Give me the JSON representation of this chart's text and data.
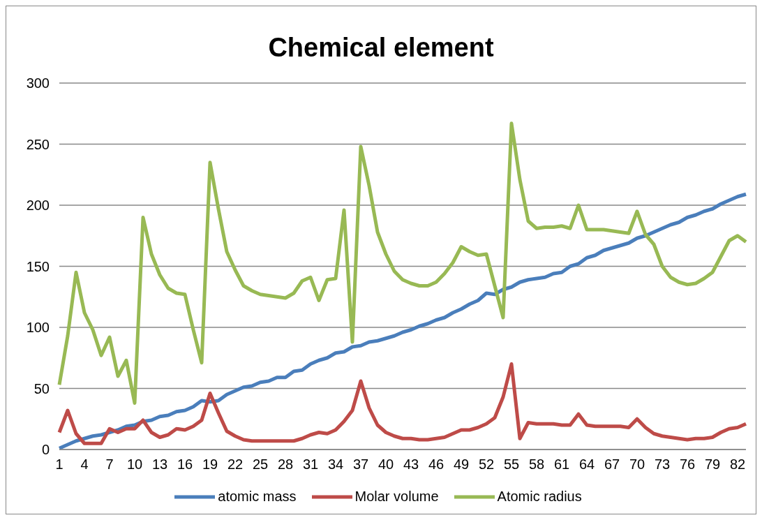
{
  "chart_data": {
    "type": "line",
    "title": "Chemical element",
    "categories": [
      "1",
      null,
      null,
      "4",
      null,
      null,
      "7",
      null,
      null,
      "10",
      null,
      null,
      "13",
      null,
      null,
      "16",
      null,
      null,
      "19",
      null,
      null,
      "22",
      null,
      null,
      "25",
      null,
      null,
      "28",
      null,
      null,
      "31",
      null,
      null,
      "34",
      null,
      null,
      "37",
      null,
      null,
      "40",
      null,
      null,
      "43",
      null,
      null,
      "46",
      null,
      null,
      "49",
      null,
      null,
      "52",
      null,
      null,
      "55",
      null,
      null,
      "58",
      null,
      null,
      "61",
      null,
      null,
      "64",
      null,
      null,
      "67",
      null,
      null,
      "70",
      null,
      null,
      "73",
      null,
      null,
      "76",
      null,
      null,
      "79",
      null,
      null,
      "82",
      null
    ],
    "series": [
      {
        "name": "atomic mass",
        "color": "#4a7ebb",
        "values": [
          1,
          4,
          7,
          9,
          11,
          12,
          14,
          16,
          19,
          20,
          23,
          24,
          27,
          28,
          31,
          32,
          35,
          40,
          39,
          40,
          45,
          48,
          51,
          52,
          55,
          56,
          59,
          59,
          64,
          65,
          70,
          73,
          75,
          79,
          80,
          84,
          85,
          88,
          89,
          91,
          93,
          96,
          98,
          101,
          103,
          106,
          108,
          112,
          115,
          119,
          122,
          128,
          127,
          131,
          133,
          137,
          139,
          140,
          141,
          144,
          145,
          150,
          152,
          157,
          159,
          163,
          165,
          167,
          169,
          173,
          175,
          178,
          181,
          184,
          186,
          190,
          192,
          195,
          197,
          201,
          204,
          207,
          209
        ]
      },
      {
        "name": "Molar volume",
        "color": "#be4b48",
        "values": [
          14,
          32,
          13,
          5,
          5,
          5,
          17,
          14,
          17,
          17,
          24,
          14,
          10,
          12,
          17,
          16,
          19,
          24,
          46,
          30,
          15,
          11,
          8,
          7,
          7,
          7,
          7,
          7,
          7,
          9,
          12,
          14,
          13,
          16,
          23,
          32,
          56,
          34,
          20,
          14,
          11,
          9,
          9,
          8,
          8,
          9,
          10,
          13,
          16,
          16,
          18,
          21,
          26,
          43,
          70,
          9,
          22,
          21,
          21,
          21,
          20,
          20,
          29,
          20,
          19,
          19,
          19,
          19,
          18,
          25,
          18,
          13,
          11,
          10,
          9,
          8,
          9,
          9,
          10,
          14,
          17,
          18,
          21
        ]
      },
      {
        "name": "Atomic radius",
        "color": "#98b954",
        "values": [
          53,
          93,
          145,
          112,
          98,
          77,
          92,
          60,
          73,
          38,
          190,
          160,
          143,
          132,
          128,
          127,
          98,
          71,
          235,
          197,
          162,
          147,
          134,
          130,
          127,
          126,
          125,
          124,
          128,
          138,
          141,
          122,
          139,
          140,
          196,
          88,
          248,
          216,
          178,
          160,
          146,
          139,
          136,
          134,
          134,
          137,
          144,
          153,
          166,
          162,
          159,
          160,
          134,
          108,
          267,
          221,
          187,
          181,
          182,
          182,
          183,
          181,
          200,
          180,
          180,
          180,
          179,
          178,
          177,
          195,
          176,
          168,
          150,
          141,
          137,
          135,
          136,
          140,
          145,
          158,
          171,
          175,
          170
        ]
      }
    ],
    "ylim": [
      0,
      300
    ],
    "yticks": [
      0,
      50,
      100,
      150,
      200,
      250,
      300
    ],
    "grid": "y",
    "legend": "bottom",
    "marker": "none",
    "line_style": "solid"
  }
}
